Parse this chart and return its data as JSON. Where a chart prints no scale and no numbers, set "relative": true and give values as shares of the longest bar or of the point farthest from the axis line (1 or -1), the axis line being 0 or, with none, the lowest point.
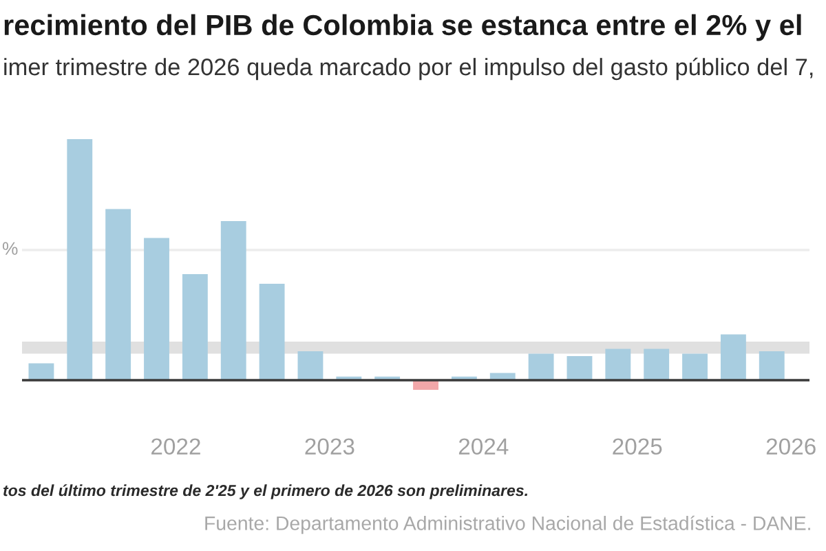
{
  "chart_data": {
    "type": "bar",
    "title": "recimiento del PIB de Colombia se estanca entre el 2% y el",
    "subtitle": "imer trimestre de 2026 queda marcado por el impulso del gasto público del 7,",
    "x": [
      2021.125,
      2021.375,
      2021.625,
      2021.875,
      2022.125,
      2022.375,
      2022.625,
      2022.875,
      2023.125,
      2023.375,
      2023.625,
      2023.875,
      2024.125,
      2024.375,
      2024.625,
      2024.875,
      2025.125,
      2025.375,
      2025.625,
      2025.875
    ],
    "values": [
      0.07,
      1.0,
      0.71,
      0.59,
      0.44,
      0.66,
      0.4,
      0.12,
      0.015,
      0.015,
      -0.04,
      0.015,
      0.03,
      0.11,
      0.1,
      0.13,
      0.13,
      0.11,
      0.19,
      0.12
    ],
    "colors": [
      "#a8cde0",
      "#a8cde0",
      "#a8cde0",
      "#a8cde0",
      "#a8cde0",
      "#a8cde0",
      "#a8cde0",
      "#a8cde0",
      "#a8cde0",
      "#a8cde0",
      "#f2a7a9",
      "#a8cde0",
      "#a8cde0",
      "#a8cde0",
      "#a8cde0",
      "#a8cde0",
      "#a8cde0",
      "#a8cde0",
      "#a8cde0",
      "#a8cde0"
    ],
    "relative": true,
    "xlim": [
      2021,
      2026.12
    ],
    "xticks": [
      2022,
      2023,
      2024,
      2025,
      2026
    ],
    "bands": [
      {
        "axis": "y",
        "from": 0.11,
        "to": 0.16,
        "color": "#e0e0e0"
      }
    ],
    "ref_lines": [
      {
        "axis": "y",
        "value": 0.54,
        "label": "%",
        "color": "#ececec"
      }
    ],
    "annotations": [
      "tos del último trimestre de 2'25 y el primero de 2026 son preliminares.",
      "Fuente: Departamento Administrativo Nacional de Estadística - DANE."
    ]
  }
}
